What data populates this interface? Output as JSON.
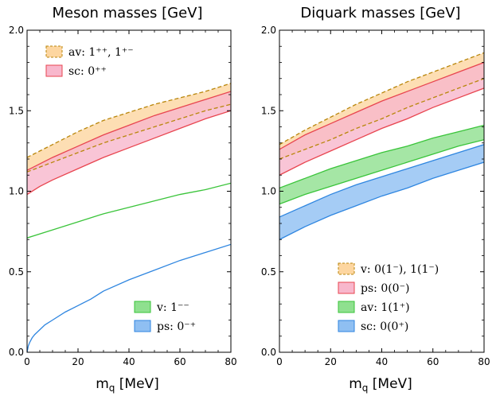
{
  "chart_data": [
    {
      "type": "area",
      "title": "Meson masses [GeV]",
      "xlabel": "m",
      "xlabel_sub": "q",
      "xlabel_unit": " [MeV]",
      "xlim": [
        0,
        80
      ],
      "ylim": [
        0,
        2
      ],
      "xticks": [
        "0",
        "20",
        "40",
        "60",
        "80"
      ],
      "yticks": [
        "0.0",
        "0.5",
        "1.0",
        "1.5",
        "2.0"
      ],
      "series": [
        {
          "name": "av",
          "label": "av:  1⁺⁺, 1⁺⁻",
          "kind": "band",
          "style": "dashed",
          "fill": "#fdd6a0",
          "stroke": "#b8860b",
          "x": [
            0,
            5,
            10,
            20,
            30,
            40,
            50,
            60,
            70,
            80
          ],
          "upper": [
            1.21,
            1.25,
            1.29,
            1.37,
            1.44,
            1.49,
            1.54,
            1.58,
            1.62,
            1.67
          ],
          "lower": [
            1.12,
            1.15,
            1.18,
            1.24,
            1.3,
            1.35,
            1.4,
            1.45,
            1.5,
            1.54
          ]
        },
        {
          "name": "sc",
          "label": "sc:  0⁺⁺",
          "kind": "band",
          "style": "solid",
          "fill": "#f8b7cc",
          "stroke": "#e8454f",
          "x": [
            0,
            5,
            10,
            20,
            30,
            40,
            50,
            60,
            70,
            80
          ],
          "upper": [
            1.13,
            1.17,
            1.21,
            1.28,
            1.35,
            1.41,
            1.47,
            1.52,
            1.57,
            1.62
          ],
          "lower": [
            0.98,
            1.03,
            1.07,
            1.14,
            1.21,
            1.27,
            1.33,
            1.39,
            1.45,
            1.5
          ]
        },
        {
          "name": "v",
          "label": "v:    1⁻⁻",
          "kind": "line",
          "fill": "#8fe08f",
          "stroke": "#3ac43a",
          "x": [
            0,
            10,
            20,
            30,
            40,
            50,
            60,
            70,
            80
          ],
          "y": [
            0.71,
            0.76,
            0.81,
            0.86,
            0.9,
            0.94,
            0.98,
            1.01,
            1.05
          ]
        },
        {
          "name": "ps",
          "label": "ps:  0⁻⁺",
          "kind": "line",
          "fill": "#8fbff2",
          "stroke": "#2f86e0",
          "x": [
            0,
            0.5,
            1,
            2,
            3,
            5,
            7,
            10,
            15,
            20,
            25,
            30,
            40,
            50,
            60,
            70,
            80
          ],
          "y": [
            0.0,
            0.04,
            0.06,
            0.09,
            0.11,
            0.14,
            0.17,
            0.2,
            0.25,
            0.29,
            0.33,
            0.38,
            0.45,
            0.51,
            0.57,
            0.62,
            0.67
          ]
        }
      ],
      "legends": [
        {
          "position": "top-left",
          "items": [
            "av",
            "sc"
          ]
        },
        {
          "position": "bottom-right",
          "items": [
            "v",
            "ps"
          ]
        }
      ]
    },
    {
      "type": "area",
      "title": "Diquark masses [GeV]",
      "xlabel": "m",
      "xlabel_sub": "q",
      "xlabel_unit": " [MeV]",
      "xlim": [
        0,
        80
      ],
      "ylim": [
        0,
        2
      ],
      "xticks": [
        "0",
        "20",
        "40",
        "60",
        "80"
      ],
      "yticks": [
        "0.0",
        "0.5",
        "1.0",
        "1.5",
        "2.0"
      ],
      "series": [
        {
          "name": "v",
          "label": "v:    0(1⁻), 1(1⁻)",
          "kind": "band",
          "style": "dashed",
          "fill": "#fdd6a0",
          "stroke": "#b8860b",
          "x": [
            0,
            10,
            20,
            30,
            40,
            50,
            60,
            70,
            80
          ],
          "upper": [
            1.29,
            1.38,
            1.46,
            1.54,
            1.61,
            1.68,
            1.74,
            1.8,
            1.86
          ],
          "lower": [
            1.2,
            1.26,
            1.32,
            1.39,
            1.45,
            1.52,
            1.58,
            1.64,
            1.7
          ]
        },
        {
          "name": "ps",
          "label": "ps:  0(0⁻)",
          "kind": "band",
          "style": "solid",
          "fill": "#f8b7cc",
          "stroke": "#e8454f",
          "x": [
            0,
            10,
            20,
            30,
            40,
            50,
            60,
            70,
            80
          ],
          "upper": [
            1.26,
            1.35,
            1.42,
            1.49,
            1.56,
            1.62,
            1.68,
            1.74,
            1.8
          ],
          "lower": [
            1.1,
            1.18,
            1.25,
            1.32,
            1.39,
            1.45,
            1.52,
            1.58,
            1.64
          ]
        },
        {
          "name": "av",
          "label": "av:  1(1⁺)",
          "kind": "band",
          "style": "solid",
          "fill": "#8fe08f",
          "stroke": "#3ac43a",
          "x": [
            0,
            10,
            20,
            30,
            40,
            50,
            60,
            70,
            80
          ],
          "upper": [
            1.02,
            1.08,
            1.14,
            1.19,
            1.24,
            1.28,
            1.33,
            1.37,
            1.41
          ],
          "lower": [
            0.92,
            0.98,
            1.03,
            1.08,
            1.13,
            1.18,
            1.23,
            1.28,
            1.32
          ]
        },
        {
          "name": "sc",
          "label": "sc:  0(0⁺)",
          "kind": "band",
          "style": "solid",
          "fill": "#8fbff2",
          "stroke": "#2f86e0",
          "x": [
            0,
            10,
            20,
            30,
            40,
            50,
            60,
            70,
            80
          ],
          "upper": [
            0.84,
            0.91,
            0.98,
            1.04,
            1.09,
            1.14,
            1.19,
            1.24,
            1.29
          ],
          "lower": [
            0.7,
            0.78,
            0.85,
            0.91,
            0.97,
            1.02,
            1.08,
            1.13,
            1.18
          ]
        }
      ],
      "legends": [
        {
          "position": "bottom-right",
          "items": [
            "v",
            "ps",
            "av",
            "sc"
          ]
        }
      ]
    }
  ]
}
